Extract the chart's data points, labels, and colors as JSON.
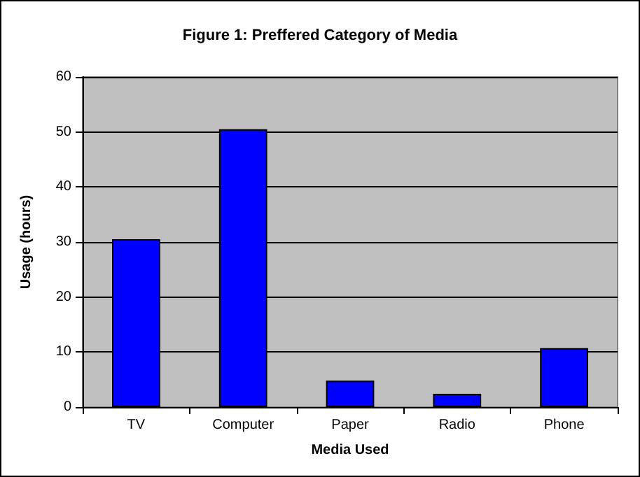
{
  "chart_data": {
    "type": "bar",
    "title": "Figure 1: Preffered Category of Media",
    "xlabel": "Media Used",
    "ylabel": "Usage (hours)",
    "categories": [
      "TV",
      "Computer",
      "Paper",
      "Radio",
      "Phone"
    ],
    "values": [
      30.5,
      50.5,
      4.8,
      2.4,
      10.7
    ],
    "color": "#0000ff",
    "ylim": [
      0,
      60
    ],
    "yticks": [
      0,
      10,
      20,
      30,
      40,
      50,
      60
    ],
    "grid": "y"
  }
}
